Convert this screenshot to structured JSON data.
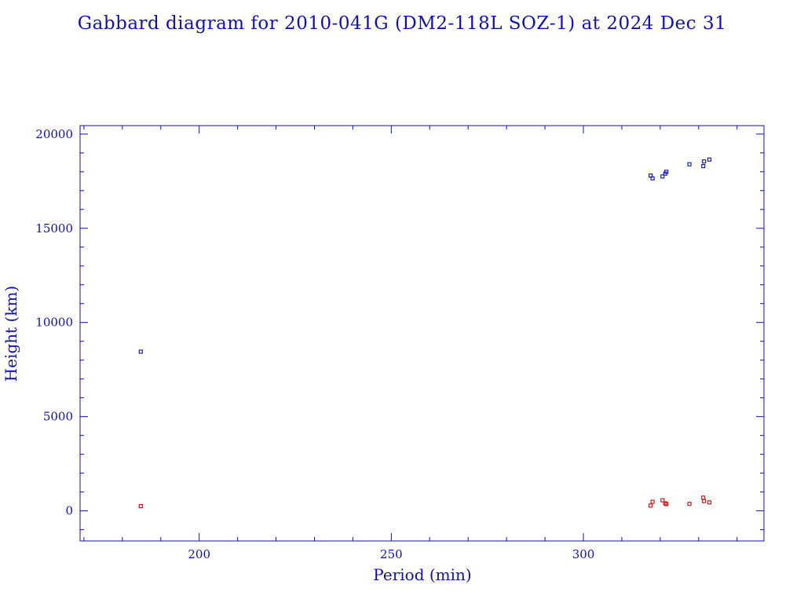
{
  "chart_data": {
    "type": "scatter",
    "title": "Gabbard diagram for 2010-041G (DM2-118L SOZ-1) at 2024 Dec 31",
    "xlabel": "Period (min)",
    "ylabel": "Height (km)",
    "xlim": [
      169,
      347
    ],
    "ylim": [
      -1600,
      20450
    ],
    "x_ticks": [
      200,
      250,
      300
    ],
    "x_tick_labels": [
      "200",
      "250",
      "300"
    ],
    "y_ticks": [
      0,
      5000,
      10000,
      15000,
      20000
    ],
    "y_tick_labels": [
      "0",
      "5000",
      "10000",
      "15000",
      "20000"
    ],
    "grid": false,
    "legend": "none",
    "series": [
      {
        "color": "#1a1acc",
        "x": [
          184.8,
          317.5,
          318.0,
          320.6,
          321.3,
          321.6,
          327.6,
          331.2,
          331.4,
          332.8
        ],
        "y": [
          8450,
          17800,
          17650,
          17750,
          17900,
          18000,
          18400,
          18300,
          18550,
          18650
        ]
      },
      {
        "color": "#cc1a1a",
        "x": [
          184.8,
          317.5,
          318.0,
          320.6,
          321.3,
          321.6,
          327.6,
          331.2,
          331.4,
          332.8
        ],
        "y": [
          250,
          280,
          480,
          560,
          400,
          360,
          370,
          700,
          520,
          450
        ]
      }
    ]
  }
}
